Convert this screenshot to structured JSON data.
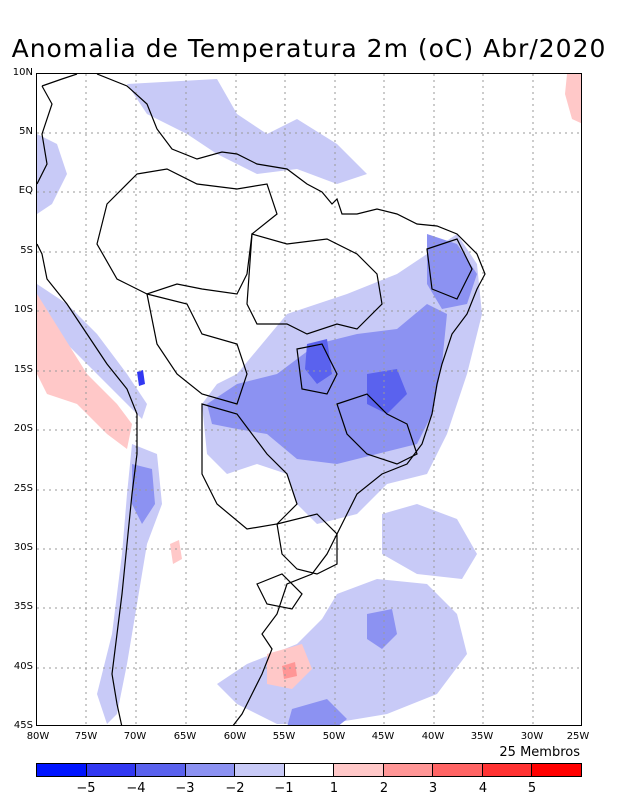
{
  "title": "Anomalia de Temperatura 2m (oC) Abr/2020",
  "members_label": "25 Membros",
  "lat_ticks": [
    "10N",
    "5N",
    "EQ",
    "5S",
    "10S",
    "15S",
    "20S",
    "25S",
    "30S",
    "35S",
    "40S",
    "45S"
  ],
  "lon_ticks": [
    "80W",
    "75W",
    "70W",
    "65W",
    "60W",
    "55W",
    "50W",
    "45W",
    "40W",
    "35W",
    "30W",
    "25W"
  ],
  "colorbar": {
    "colors": [
      "#0014ff",
      "#3238f2",
      "#5a62ee",
      "#8c92f2",
      "#c8caf7",
      "#ffffff",
      "#ffc8c8",
      "#ff9696",
      "#ff6464",
      "#ff3232",
      "#ff0000"
    ],
    "labels": [
      "−5",
      "−4",
      "−3",
      "−2",
      "−1",
      "1",
      "2",
      "3",
      "4",
      "5"
    ]
  },
  "map_colors": {
    "land_outline": "#000000",
    "grid": "#9a9a9a"
  }
}
